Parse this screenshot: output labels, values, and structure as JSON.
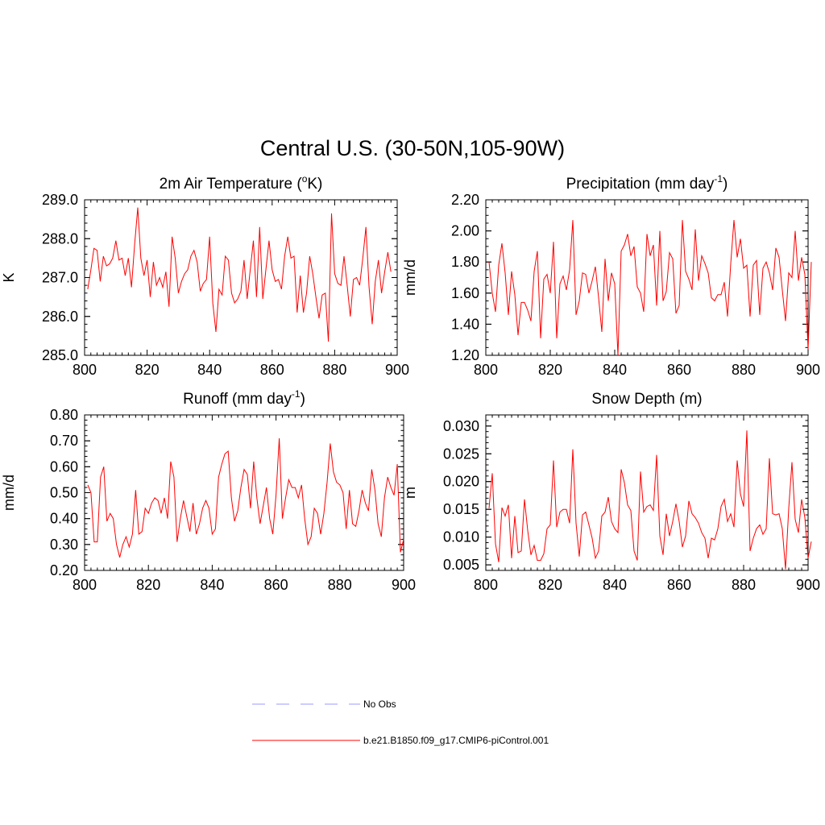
{
  "title": "Central U.S. (30-50N,105-90W)",
  "colors": {
    "model": "#ff0000",
    "obs": "#9999ff",
    "axis": "#000000"
  },
  "chart_data": [
    {
      "type": "line",
      "title": "2m Air Temperature (",
      "title_sup": "o",
      "title_after": "K)",
      "ylabel": "K",
      "xlim": [
        800,
        900
      ],
      "ylim": [
        285.0,
        289.0
      ],
      "x_ticks": [
        800,
        820,
        840,
        860,
        880,
        900
      ],
      "x_tick_labels": [
        "800",
        "820",
        "840",
        "860",
        "880",
        "900"
      ],
      "y_ticks": [
        285.0,
        286.0,
        287.0,
        288.0,
        289.0
      ],
      "y_tick_labels": [
        "285.0",
        "286.0",
        "287.0",
        "288.0",
        "289.0"
      ],
      "y_minor": 0.2,
      "series": [
        {
          "name": "b.e21.B1850.f09_g17.CMIP6-piControl.001",
          "x_start": 801,
          "values": [
            286.7,
            287.2,
            287.75,
            287.7,
            286.9,
            287.55,
            287.3,
            287.35,
            287.5,
            287.95,
            287.45,
            287.5,
            287.05,
            287.5,
            286.75,
            287.85,
            288.8,
            287.5,
            287.05,
            287.45,
            286.5,
            287.4,
            286.8,
            287.0,
            286.75,
            287.15,
            286.25,
            288.05,
            287.5,
            286.6,
            286.9,
            287.1,
            287.2,
            287.55,
            287.7,
            287.4,
            286.65,
            286.85,
            286.95,
            288.05,
            286.35,
            285.6,
            286.7,
            286.55,
            287.55,
            287.45,
            286.6,
            286.35,
            286.45,
            286.65,
            287.45,
            286.45,
            287.2,
            287.95,
            286.5,
            288.3,
            286.45,
            287.2,
            287.95,
            287.2,
            286.9,
            286.95,
            286.7,
            287.55,
            288.05,
            287.5,
            287.55,
            286.1,
            287.05,
            286.1,
            286.6,
            287.55,
            287.1,
            286.5,
            285.95,
            286.55,
            286.6,
            285.35,
            288.65,
            287.1,
            286.85,
            286.8,
            287.55,
            286.8,
            286.0,
            286.95,
            287.0,
            286.8,
            287.5,
            288.3,
            286.75,
            285.8,
            286.9,
            287.45,
            286.6,
            287.15,
            287.65,
            287.15
          ]
        }
      ]
    },
    {
      "type": "line",
      "title": "Precipitation (mm day",
      "title_sup": "-1",
      "title_after": ")",
      "ylabel": "mm/d",
      "xlim": [
        800,
        900
      ],
      "ylim": [
        1.2,
        2.2
      ],
      "x_ticks": [
        800,
        820,
        840,
        860,
        880,
        900
      ],
      "x_tick_labels": [
        "800",
        "820",
        "840",
        "860",
        "880",
        "900"
      ],
      "y_ticks": [
        1.2,
        1.4,
        1.6,
        1.8,
        2.0,
        2.2
      ],
      "y_tick_labels": [
        "1.20",
        "1.40",
        "1.60",
        "1.80",
        "2.00",
        "2.20"
      ],
      "y_minor": 0.05,
      "series": [
        {
          "name": "b.e21.B1850.f09_g17.CMIP6-piControl.001",
          "x_start": 801,
          "values": [
            1.8,
            1.6,
            1.48,
            1.78,
            1.92,
            1.73,
            1.46,
            1.74,
            1.59,
            1.33,
            1.54,
            1.54,
            1.49,
            1.42,
            1.74,
            1.87,
            1.31,
            1.69,
            1.72,
            1.6,
            1.93,
            1.31,
            1.66,
            1.71,
            1.62,
            1.75,
            2.07,
            1.46,
            1.55,
            1.73,
            1.72,
            1.6,
            1.68,
            1.77,
            1.57,
            1.35,
            1.82,
            1.55,
            1.73,
            1.66,
            1.2,
            1.87,
            1.91,
            1.98,
            1.84,
            1.9,
            1.64,
            1.6,
            1.48,
            1.98,
            1.84,
            1.91,
            1.52,
            2.0,
            1.55,
            1.61,
            1.86,
            1.82,
            1.47,
            1.52,
            2.07,
            1.74,
            1.69,
            1.62,
            2.01,
            1.68,
            1.84,
            1.79,
            1.73,
            1.57,
            1.55,
            1.59,
            1.59,
            1.67,
            1.45,
            1.79,
            2.07,
            1.83,
            1.95,
            1.76,
            1.78,
            1.45,
            1.78,
            1.81,
            1.46,
            1.76,
            1.8,
            1.73,
            1.62,
            1.89,
            1.83,
            1.62,
            1.42,
            1.73,
            1.7,
            2.0,
            1.68,
            1.83,
            1.72,
            1.24,
            1.8
          ]
        }
      ]
    },
    {
      "type": "line",
      "title": "Runoff (mm day",
      "title_sup": "-1",
      "title_after": ")",
      "ylabel": "mm/d",
      "xlim": [
        800,
        900
      ],
      "ylim": [
        0.2,
        0.8
      ],
      "x_ticks": [
        800,
        820,
        840,
        860,
        880,
        900
      ],
      "x_tick_labels": [
        "800",
        "820",
        "840",
        "860",
        "880",
        "900"
      ],
      "y_ticks": [
        0.2,
        0.3,
        0.4,
        0.5,
        0.6,
        0.7,
        0.8
      ],
      "y_tick_labels": [
        "0.20",
        "0.30",
        "0.40",
        "0.50",
        "0.60",
        "0.70",
        "0.80"
      ],
      "y_minor": 0.02,
      "series": [
        {
          "name": "b.e21.B1850.f09_g17.CMIP6-piControl.001",
          "x_start": 801,
          "values": [
            0.53,
            0.5,
            0.31,
            0.31,
            0.56,
            0.6,
            0.39,
            0.42,
            0.4,
            0.3,
            0.25,
            0.3,
            0.33,
            0.29,
            0.34,
            0.51,
            0.34,
            0.35,
            0.44,
            0.42,
            0.46,
            0.48,
            0.47,
            0.42,
            0.48,
            0.4,
            0.62,
            0.56,
            0.31,
            0.4,
            0.47,
            0.41,
            0.35,
            0.46,
            0.34,
            0.38,
            0.44,
            0.47,
            0.44,
            0.34,
            0.36,
            0.56,
            0.61,
            0.65,
            0.66,
            0.48,
            0.39,
            0.43,
            0.52,
            0.59,
            0.57,
            0.44,
            0.62,
            0.48,
            0.38,
            0.45,
            0.52,
            0.4,
            0.34,
            0.49,
            0.71,
            0.4,
            0.48,
            0.55,
            0.52,
            0.52,
            0.48,
            0.53,
            0.4,
            0.3,
            0.33,
            0.44,
            0.42,
            0.34,
            0.42,
            0.54,
            0.69,
            0.58,
            0.54,
            0.53,
            0.5,
            0.36,
            0.51,
            0.38,
            0.37,
            0.43,
            0.51,
            0.46,
            0.43,
            0.59,
            0.51,
            0.38,
            0.33,
            0.48,
            0.56,
            0.52,
            0.49,
            0.61,
            0.27,
            0.32
          ]
        }
      ]
    },
    {
      "type": "line",
      "title": "Snow Depth (m)",
      "title_sup": "",
      "title_after": "",
      "ylabel": "m",
      "xlim": [
        800,
        900
      ],
      "ylim": [
        0.004,
        0.032
      ],
      "x_ticks": [
        800,
        820,
        840,
        860,
        880,
        900
      ],
      "x_tick_labels": [
        "800",
        "820",
        "840",
        "860",
        "880",
        "900"
      ],
      "y_ticks": [
        0.005,
        0.01,
        0.015,
        0.02,
        0.025,
        0.03
      ],
      "y_tick_labels": [
        "0.005",
        "0.010",
        "0.015",
        "0.020",
        "0.025",
        "0.030"
      ],
      "y_minor": 0.001,
      "series": [
        {
          "name": "b.e21.B1850.f09_g17.CMIP6-piControl.001",
          "x_start": 801,
          "values": [
            0.0152,
            0.0215,
            0.0088,
            0.0055,
            0.0153,
            0.0138,
            0.0158,
            0.0062,
            0.0138,
            0.0072,
            0.0075,
            0.0168,
            0.0112,
            0.0068,
            0.0085,
            0.0058,
            0.0058,
            0.007,
            0.0115,
            0.0122,
            0.0238,
            0.0118,
            0.0145,
            0.015,
            0.015,
            0.0125,
            0.0258,
            0.0125,
            0.0065,
            0.014,
            0.0145,
            0.0122,
            0.0098,
            0.0062,
            0.0075,
            0.0138,
            0.0145,
            0.0172,
            0.0128,
            0.0115,
            0.0108,
            0.0222,
            0.0198,
            0.0158,
            0.0148,
            0.0075,
            0.0058,
            0.0218,
            0.0145,
            0.0155,
            0.0158,
            0.0148,
            0.0248,
            0.0102,
            0.0068,
            0.0142,
            0.0102,
            0.0128,
            0.016,
            0.0128,
            0.0082,
            0.0102,
            0.0165,
            0.0142,
            0.0135,
            0.0125,
            0.0108,
            0.0098,
            0.0062,
            0.0098,
            0.0095,
            0.0115,
            0.0155,
            0.0168,
            0.0128,
            0.0142,
            0.0118,
            0.0238,
            0.0178,
            0.0155,
            0.0292,
            0.0075,
            0.0098,
            0.0115,
            0.0122,
            0.0105,
            0.0115,
            0.0242,
            0.0142,
            0.014,
            0.0142,
            0.0115,
            0.0042,
            0.0152,
            0.0235,
            0.0132,
            0.0108,
            0.0168,
            0.0135,
            0.0062,
            0.0092
          ]
        }
      ]
    }
  ],
  "legend": [
    {
      "label": "No Obs",
      "style": "dashed",
      "color": "#9999ff"
    },
    {
      "label": "b.e21.B1850.f09_g17.CMIP6-piControl.001",
      "style": "solid",
      "color": "#ff0000"
    }
  ]
}
